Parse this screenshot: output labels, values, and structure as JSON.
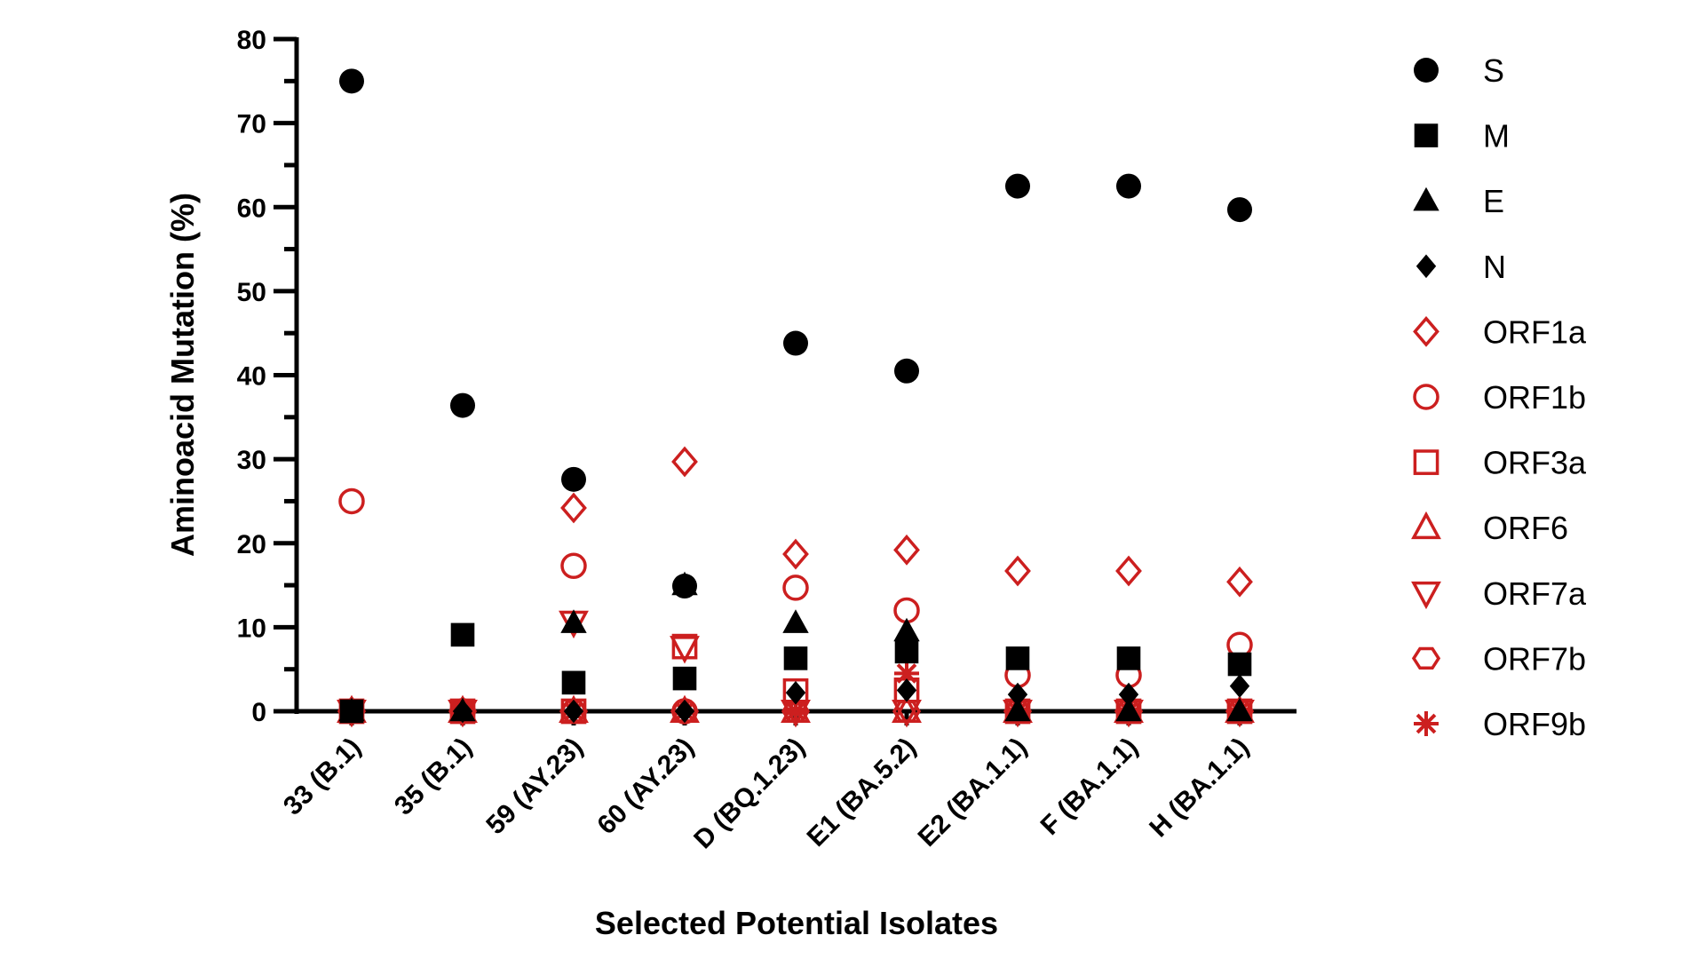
{
  "chart_data": {
    "type": "scatter",
    "title": "",
    "xlabel": "Selected Potential Isolates",
    "ylabel": "Aminoacid Mutation (%)",
    "ylim": [
      0,
      80
    ],
    "yticks": [
      0,
      10,
      20,
      30,
      40,
      50,
      60,
      70,
      80
    ],
    "grid": false,
    "legend_position": "right",
    "categories": [
      "33 (B.1)",
      "35 (B.1)",
      "59 (AY.23)",
      "60 (AY.23)",
      "D (BQ.1.23)",
      "E1 (BA.5.2)",
      "E2 (BA.1.1)",
      "F (BA.1.1)",
      "H (BA.1.1)"
    ],
    "series": [
      {
        "name": "S",
        "marker": "circle-filled",
        "color": "#000000",
        "values": [
          75,
          36.4,
          27.6,
          14.9,
          43.8,
          40.5,
          62.5,
          62.5,
          59.7
        ]
      },
      {
        "name": "M",
        "marker": "square-filled",
        "color": "#000000",
        "values": [
          0,
          9.1,
          3.4,
          3.9,
          6.3,
          7.1,
          6.3,
          6.3,
          5.6
        ]
      },
      {
        "name": "E",
        "marker": "triangle-up-filled",
        "color": "#000000",
        "values": [
          0,
          0,
          10.5,
          15,
          10.5,
          9.5,
          0,
          0,
          0
        ]
      },
      {
        "name": "N",
        "marker": "diamond-filled",
        "color": "#000000",
        "values": [
          0,
          0,
          0,
          0,
          2.2,
          2.5,
          2.0,
          2.0,
          3.0
        ]
      },
      {
        "name": "ORF1a",
        "marker": "diamond-open",
        "color": "#cc1f1f",
        "values": [
          0,
          0,
          24.2,
          29.7,
          18.7,
          19.2,
          16.7,
          16.7,
          15.4
        ]
      },
      {
        "name": "ORF1b",
        "marker": "circle-open",
        "color": "#cc1f1f",
        "values": [
          25,
          0,
          17.3,
          0,
          14.7,
          12,
          4.3,
          4.3,
          7.9
        ]
      },
      {
        "name": "ORF3a",
        "marker": "square-open",
        "color": "#cc1f1f",
        "values": [
          0,
          0,
          0,
          7.7,
          2.4,
          2.5,
          0,
          0,
          0
        ]
      },
      {
        "name": "ORF6",
        "marker": "triangle-up-open",
        "color": "#cc1f1f",
        "values": [
          0,
          0,
          0,
          0,
          0,
          0,
          0,
          0,
          0
        ]
      },
      {
        "name": "ORF7a",
        "marker": "triangle-down-open",
        "color": "#cc1f1f",
        "values": [
          0,
          0,
          10.6,
          7.6,
          0,
          0,
          0,
          0,
          0
        ]
      },
      {
        "name": "ORF7b",
        "marker": "hexagon-open",
        "color": "#cc1f1f",
        "values": [
          0,
          0,
          0,
          0,
          0,
          0,
          0,
          0,
          0
        ]
      },
      {
        "name": "ORF9b",
        "marker": "asterisk",
        "color": "#cc1f1f",
        "values": [
          0,
          0,
          0,
          0,
          0,
          4.5,
          0,
          0,
          0
        ]
      }
    ]
  }
}
